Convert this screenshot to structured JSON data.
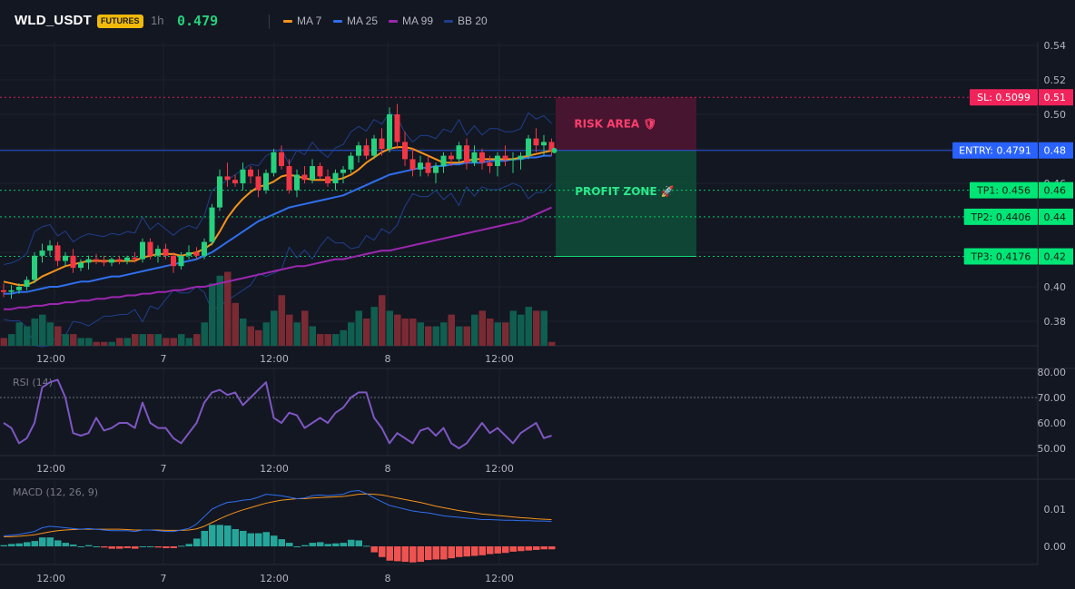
{
  "header": {
    "symbol": "WLD_USDT",
    "market_badge": "FUTURES",
    "timeframe": "1h",
    "last_price": "0.479",
    "indicators": [
      {
        "label": "MA 7",
        "color": "#f7931a"
      },
      {
        "label": "MA 25",
        "color": "#2f6fed"
      },
      {
        "label": "MA 99",
        "color": "#9c27b0"
      },
      {
        "label": "BB 20",
        "color": "#1e3f8a"
      }
    ]
  },
  "colors": {
    "bull": "#26d07c",
    "bear": "#f23645",
    "entry": "#2962ff",
    "sl": "#f0245b",
    "tp": "#00e676",
    "rsi": "#7e57c2",
    "macd": "#2f6fed",
    "signal": "#f7931a",
    "hist_pos": "#26a69a",
    "hist_neg": "#ef5350"
  },
  "price_pane": {
    "y_ticks": [
      "0.54",
      "0.52",
      "0.50",
      "0.48",
      "0.46",
      "0.44",
      "0.42",
      "0.40",
      "0.38"
    ],
    "levels": [
      {
        "id": "sl",
        "label": "SL: 0.5099",
        "tick": "0.51",
        "value": 0.5099
      },
      {
        "id": "entry",
        "label": "ENTRY: 0.4791",
        "tick": "0.48",
        "value": 0.4791
      },
      {
        "id": "tp1",
        "label": "TP1: 0.456",
        "tick": "0.46",
        "value": 0.456
      },
      {
        "id": "tp2",
        "label": "TP2: 0.4406",
        "tick": "0.44",
        "value": 0.4406
      },
      {
        "id": "tp3",
        "label": "TP3: 0.4176",
        "tick": "0.42",
        "value": 0.4176
      }
    ],
    "risk_label": "RISK AREA 🛡",
    "profit_label": "PROFIT ZONE 🚀"
  },
  "x_axis_labels": [
    "12:00",
    "7",
    "12:00",
    "8",
    "12:00"
  ],
  "rsi_pane": {
    "title": "RSI (14)",
    "y_ticks": [
      "80.00",
      "70.00",
      "60.00",
      "50.00"
    ],
    "overbought": 70
  },
  "macd_pane": {
    "title": "MACD (12, 26, 9)",
    "y_ticks": [
      "0.01",
      "0.00"
    ]
  },
  "chart_data": {
    "type": "candlestick",
    "ohlc": [
      [
        0.398,
        0.402,
        0.394,
        0.397
      ],
      [
        0.397,
        0.401,
        0.393,
        0.398
      ],
      [
        0.398,
        0.402,
        0.396,
        0.4
      ],
      [
        0.4,
        0.406,
        0.398,
        0.404
      ],
      [
        0.404,
        0.42,
        0.402,
        0.418
      ],
      [
        0.418,
        0.425,
        0.414,
        0.421
      ],
      [
        0.421,
        0.427,
        0.418,
        0.424
      ],
      [
        0.424,
        0.426,
        0.412,
        0.415
      ],
      [
        0.415,
        0.42,
        0.412,
        0.418
      ],
      [
        0.418,
        0.422,
        0.408,
        0.411
      ],
      [
        0.411,
        0.416,
        0.409,
        0.414
      ],
      [
        0.414,
        0.418,
        0.41,
        0.416
      ],
      [
        0.416,
        0.419,
        0.413,
        0.415
      ],
      [
        0.415,
        0.418,
        0.412,
        0.414
      ],
      [
        0.414,
        0.417,
        0.412,
        0.416
      ],
      [
        0.416,
        0.418,
        0.413,
        0.415
      ],
      [
        0.415,
        0.418,
        0.413,
        0.417
      ],
      [
        0.417,
        0.42,
        0.414,
        0.416
      ],
      [
        0.416,
        0.428,
        0.414,
        0.426
      ],
      [
        0.426,
        0.428,
        0.416,
        0.418
      ],
      [
        0.418,
        0.424,
        0.414,
        0.422
      ],
      [
        0.422,
        0.425,
        0.416,
        0.418
      ],
      [
        0.418,
        0.42,
        0.408,
        0.412
      ],
      [
        0.412,
        0.42,
        0.41,
        0.418
      ],
      [
        0.418,
        0.424,
        0.416,
        0.42
      ],
      [
        0.42,
        0.423,
        0.416,
        0.418
      ],
      [
        0.418,
        0.428,
        0.416,
        0.426
      ],
      [
        0.426,
        0.448,
        0.424,
        0.446
      ],
      [
        0.446,
        0.468,
        0.444,
        0.464
      ],
      [
        0.464,
        0.472,
        0.458,
        0.462
      ],
      [
        0.462,
        0.465,
        0.458,
        0.46
      ],
      [
        0.46,
        0.472,
        0.456,
        0.468
      ],
      [
        0.468,
        0.47,
        0.46,
        0.464
      ],
      [
        0.464,
        0.468,
        0.452,
        0.456
      ],
      [
        0.456,
        0.468,
        0.454,
        0.466
      ],
      [
        0.466,
        0.48,
        0.464,
        0.478
      ],
      [
        0.478,
        0.482,
        0.468,
        0.47
      ],
      [
        0.47,
        0.474,
        0.454,
        0.456
      ],
      [
        0.456,
        0.468,
        0.452,
        0.465
      ],
      [
        0.465,
        0.47,
        0.46,
        0.462
      ],
      [
        0.462,
        0.474,
        0.46,
        0.47
      ],
      [
        0.47,
        0.472,
        0.462,
        0.464
      ],
      [
        0.464,
        0.468,
        0.458,
        0.46
      ],
      [
        0.46,
        0.468,
        0.456,
        0.466
      ],
      [
        0.466,
        0.47,
        0.46,
        0.468
      ],
      [
        0.468,
        0.478,
        0.466,
        0.476
      ],
      [
        0.476,
        0.484,
        0.472,
        0.482
      ],
      [
        0.482,
        0.486,
        0.474,
        0.476
      ],
      [
        0.476,
        0.488,
        0.474,
        0.486
      ],
      [
        0.486,
        0.492,
        0.476,
        0.48
      ],
      [
        0.48,
        0.504,
        0.478,
        0.5
      ],
      [
        0.5,
        0.506,
        0.48,
        0.484
      ],
      [
        0.484,
        0.49,
        0.47,
        0.474
      ],
      [
        0.474,
        0.48,
        0.464,
        0.468
      ],
      [
        0.468,
        0.476,
        0.464,
        0.472
      ],
      [
        0.472,
        0.476,
        0.464,
        0.466
      ],
      [
        0.466,
        0.472,
        0.46,
        0.47
      ],
      [
        0.47,
        0.478,
        0.466,
        0.476
      ],
      [
        0.476,
        0.478,
        0.47,
        0.474
      ],
      [
        0.474,
        0.484,
        0.472,
        0.482
      ],
      [
        0.482,
        0.486,
        0.468,
        0.472
      ],
      [
        0.472,
        0.482,
        0.47,
        0.478
      ],
      [
        0.478,
        0.48,
        0.468,
        0.472
      ],
      [
        0.472,
        0.476,
        0.466,
        0.47
      ],
      [
        0.47,
        0.478,
        0.464,
        0.476
      ],
      [
        0.476,
        0.482,
        0.47,
        0.474
      ],
      [
        0.474,
        0.478,
        0.466,
        0.474
      ],
      [
        0.474,
        0.478,
        0.468,
        0.476
      ],
      [
        0.476,
        0.488,
        0.474,
        0.486
      ],
      [
        0.486,
        0.492,
        0.478,
        0.482
      ],
      [
        0.482,
        0.488,
        0.476,
        0.484
      ],
      [
        0.484,
        0.486,
        0.476,
        0.479
      ]
    ],
    "volume": [
      2,
      3,
      6,
      5,
      7,
      8,
      6,
      5,
      3,
      3,
      2,
      2,
      1,
      1,
      1,
      2,
      2,
      3,
      3,
      3,
      3,
      2,
      2,
      3,
      2,
      3,
      6,
      16,
      18,
      19,
      11,
      7,
      5,
      4,
      6,
      9,
      13,
      8,
      6,
      9,
      5,
      3,
      3,
      3,
      4,
      6,
      9,
      7,
      10,
      13,
      9,
      8,
      7,
      7,
      6,
      5,
      5,
      6,
      8,
      5,
      5,
      8,
      9,
      7,
      6,
      6,
      9,
      8,
      10,
      9,
      9,
      1
    ],
    "ma7": [
      0.403,
      0.402,
      0.401,
      0.401,
      0.403,
      0.406,
      0.408,
      0.41,
      0.412,
      0.413,
      0.414,
      0.415,
      0.415,
      0.415,
      0.415,
      0.415,
      0.415,
      0.415,
      0.417,
      0.418,
      0.419,
      0.419,
      0.419,
      0.418,
      0.419,
      0.42,
      0.422,
      0.425,
      0.432,
      0.44,
      0.446,
      0.451,
      0.455,
      0.458,
      0.459,
      0.461,
      0.464,
      0.465,
      0.464,
      0.463,
      0.462,
      0.462,
      0.462,
      0.462,
      0.463,
      0.465,
      0.468,
      0.472,
      0.475,
      0.478,
      0.48,
      0.481,
      0.481,
      0.48,
      0.478,
      0.476,
      0.474,
      0.472,
      0.472,
      0.472,
      0.473,
      0.474,
      0.474,
      0.474,
      0.474,
      0.474,
      0.474,
      0.475,
      0.476,
      0.477,
      0.478,
      0.479
    ],
    "ma25": [
      0.396,
      0.396,
      0.397,
      0.397,
      0.398,
      0.399,
      0.4,
      0.4,
      0.401,
      0.402,
      0.403,
      0.403,
      0.404,
      0.405,
      0.406,
      0.406,
      0.407,
      0.408,
      0.409,
      0.41,
      0.411,
      0.412,
      0.413,
      0.414,
      0.415,
      0.416,
      0.418,
      0.42,
      0.423,
      0.426,
      0.429,
      0.432,
      0.435,
      0.438,
      0.44,
      0.442,
      0.444,
      0.446,
      0.447,
      0.448,
      0.449,
      0.45,
      0.451,
      0.452,
      0.453,
      0.455,
      0.457,
      0.459,
      0.461,
      0.463,
      0.465,
      0.466,
      0.467,
      0.468,
      0.469,
      0.469,
      0.47,
      0.47,
      0.471,
      0.471,
      0.472,
      0.472,
      0.472,
      0.473,
      0.473,
      0.473,
      0.474,
      0.474,
      0.475,
      0.475,
      0.476,
      0.476
    ],
    "ma99": [
      0.387,
      0.387,
      0.388,
      0.388,
      0.389,
      0.389,
      0.39,
      0.39,
      0.391,
      0.391,
      0.392,
      0.392,
      0.393,
      0.393,
      0.394,
      0.394,
      0.395,
      0.395,
      0.396,
      0.396,
      0.397,
      0.397,
      0.398,
      0.398,
      0.399,
      0.4,
      0.4,
      0.401,
      0.402,
      0.403,
      0.404,
      0.405,
      0.406,
      0.407,
      0.408,
      0.409,
      0.41,
      0.411,
      0.412,
      0.412,
      0.413,
      0.414,
      0.415,
      0.416,
      0.416,
      0.417,
      0.418,
      0.419,
      0.42,
      0.421,
      0.421,
      0.422,
      0.423,
      0.424,
      0.425,
      0.426,
      0.427,
      0.428,
      0.429,
      0.43,
      0.431,
      0.432,
      0.433,
      0.434,
      0.435,
      0.436,
      0.437,
      0.438,
      0.44,
      0.442,
      0.444,
      0.446
    ],
    "rsi": [
      60,
      58,
      52,
      54,
      60,
      74,
      76,
      77,
      70,
      56,
      55,
      56,
      62,
      57,
      58,
      60,
      60,
      58,
      68,
      60,
      58,
      58,
      54,
      52,
      56,
      60,
      68,
      72,
      73,
      71,
      72,
      67,
      70,
      73,
      76,
      62,
      60,
      64,
      63,
      58,
      60,
      62,
      60,
      64,
      66,
      70,
      72,
      72,
      62,
      58,
      52,
      56,
      54,
      52,
      57,
      58,
      55,
      58,
      52,
      50,
      52,
      56,
      60,
      56,
      58,
      55,
      52,
      56,
      58,
      60,
      54,
      55
    ],
    "macd": [
      0.0028,
      0.003,
      0.0032,
      0.0036,
      0.004,
      0.005,
      0.0054,
      0.0052,
      0.005,
      0.0048,
      0.0046,
      0.0048,
      0.0046,
      0.0044,
      0.0042,
      0.0042,
      0.0042,
      0.004,
      0.0044,
      0.0044,
      0.0042,
      0.004,
      0.004,
      0.0044,
      0.0048,
      0.006,
      0.008,
      0.01,
      0.011,
      0.0118,
      0.012,
      0.0124,
      0.0126,
      0.0132,
      0.014,
      0.0138,
      0.0136,
      0.0132,
      0.0128,
      0.013,
      0.0136,
      0.0138,
      0.0136,
      0.0138,
      0.014,
      0.0148,
      0.015,
      0.0142,
      0.013,
      0.012,
      0.011,
      0.0105,
      0.01,
      0.0095,
      0.0092,
      0.009,
      0.0086,
      0.0082,
      0.008,
      0.0078,
      0.0076,
      0.0074,
      0.0072,
      0.0072,
      0.0071,
      0.007,
      0.007,
      0.0069,
      0.0069,
      0.0068,
      0.0068,
      0.0067
    ],
    "signal": [
      0.0026,
      0.0026,
      0.0027,
      0.0029,
      0.0031,
      0.0035,
      0.0039,
      0.0042,
      0.0044,
      0.0045,
      0.0046,
      0.0046,
      0.0046,
      0.0046,
      0.0046,
      0.0046,
      0.0045,
      0.0044,
      0.0044,
      0.0044,
      0.0044,
      0.0043,
      0.0043,
      0.0043,
      0.0044,
      0.0047,
      0.0054,
      0.0064,
      0.0074,
      0.0083,
      0.0091,
      0.0098,
      0.0104,
      0.011,
      0.0116,
      0.012,
      0.0124,
      0.0126,
      0.0128,
      0.0128,
      0.013,
      0.0131,
      0.0132,
      0.0133,
      0.0134,
      0.0137,
      0.014,
      0.0141,
      0.014,
      0.0138,
      0.0134,
      0.013,
      0.0126,
      0.0122,
      0.0118,
      0.0113,
      0.0108,
      0.0104,
      0.01,
      0.0096,
      0.0093,
      0.009,
      0.0087,
      0.0085,
      0.0083,
      0.0081,
      0.0079,
      0.0077,
      0.0076,
      0.0074,
      0.0073,
      0.0072
    ]
  }
}
